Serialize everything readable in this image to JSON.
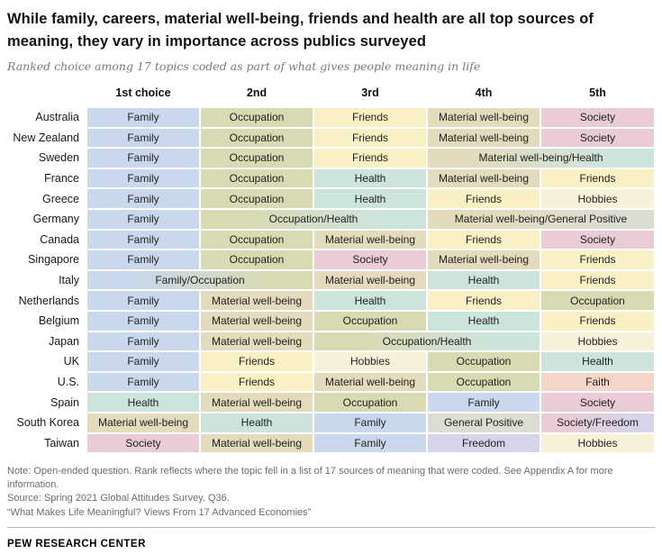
{
  "header": {
    "title": "While family, careers, material well-being, friends and health are all top sources of meaning, they vary in importance across publics surveyed",
    "subtitle": "Ranked choice among 17 topics coded as part of what gives people meaning in life"
  },
  "chart_data": {
    "type": "table",
    "title": "While family, careers, material well-being, friends and health are all top sources of meaning, they vary in importance across publics surveyed",
    "subtitle": "Ranked choice among 17 topics coded as part of what gives people meaning in life",
    "columns": [
      "1st choice",
      "2nd",
      "3rd",
      "4th",
      "5th"
    ],
    "rows": [
      {
        "country": "Australia",
        "cells": [
          {
            "label": "Family",
            "span": 1
          },
          {
            "label": "Occupation",
            "span": 1
          },
          {
            "label": "Friends",
            "span": 1
          },
          {
            "label": "Material well-being",
            "span": 1
          },
          {
            "label": "Society",
            "span": 1
          }
        ]
      },
      {
        "country": "New Zealand",
        "cells": [
          {
            "label": "Family",
            "span": 1
          },
          {
            "label": "Occupation",
            "span": 1
          },
          {
            "label": "Friends",
            "span": 1
          },
          {
            "label": "Material well-being",
            "span": 1
          },
          {
            "label": "Society",
            "span": 1
          }
        ]
      },
      {
        "country": "Sweden",
        "cells": [
          {
            "label": "Family",
            "span": 1
          },
          {
            "label": "Occupation",
            "span": 1
          },
          {
            "label": "Friends",
            "span": 1
          },
          {
            "label": "Material well-being/Health",
            "span": 2
          }
        ]
      },
      {
        "country": "France",
        "cells": [
          {
            "label": "Family",
            "span": 1
          },
          {
            "label": "Occupation",
            "span": 1
          },
          {
            "label": "Health",
            "span": 1
          },
          {
            "label": "Material well-being",
            "span": 1
          },
          {
            "label": "Friends",
            "span": 1
          }
        ]
      },
      {
        "country": "Greece",
        "cells": [
          {
            "label": "Family",
            "span": 1
          },
          {
            "label": "Occupation",
            "span": 1
          },
          {
            "label": "Health",
            "span": 1
          },
          {
            "label": "Friends",
            "span": 1
          },
          {
            "label": "Hobbies",
            "span": 1
          }
        ]
      },
      {
        "country": "Germany",
        "cells": [
          {
            "label": "Family",
            "span": 1
          },
          {
            "label": "Occupation/Health",
            "span": 2
          },
          {
            "label": "Material well-being/General Positive",
            "span": 2
          }
        ]
      },
      {
        "country": "Canada",
        "cells": [
          {
            "label": "Family",
            "span": 1
          },
          {
            "label": "Occupation",
            "span": 1
          },
          {
            "label": "Material well-being",
            "span": 1
          },
          {
            "label": "Friends",
            "span": 1
          },
          {
            "label": "Society",
            "span": 1
          }
        ]
      },
      {
        "country": "Singapore",
        "cells": [
          {
            "label": "Family",
            "span": 1
          },
          {
            "label": "Occupation",
            "span": 1
          },
          {
            "label": "Society",
            "span": 1
          },
          {
            "label": "Material well-being",
            "span": 1
          },
          {
            "label": "Friends",
            "span": 1
          }
        ]
      },
      {
        "country": "Italy",
        "cells": [
          {
            "label": "Family/Occupation",
            "span": 2
          },
          {
            "label": "Material well-being",
            "span": 1
          },
          {
            "label": "Health",
            "span": 1
          },
          {
            "label": "Friends",
            "span": 1
          }
        ]
      },
      {
        "country": "Netherlands",
        "cells": [
          {
            "label": "Family",
            "span": 1
          },
          {
            "label": "Material well-being",
            "span": 1
          },
          {
            "label": "Health",
            "span": 1
          },
          {
            "label": "Friends",
            "span": 1
          },
          {
            "label": "Occupation",
            "span": 1
          }
        ]
      },
      {
        "country": "Belgium",
        "cells": [
          {
            "label": "Family",
            "span": 1
          },
          {
            "label": "Material well-being",
            "span": 1
          },
          {
            "label": "Occupation",
            "span": 1
          },
          {
            "label": "Health",
            "span": 1
          },
          {
            "label": "Friends",
            "span": 1
          }
        ]
      },
      {
        "country": "Japan",
        "cells": [
          {
            "label": "Family",
            "span": 1
          },
          {
            "label": "Material well-being",
            "span": 1
          },
          {
            "label": "Occupation/Health",
            "span": 2
          },
          {
            "label": "Hobbies",
            "span": 1
          }
        ]
      },
      {
        "country": "UK",
        "cells": [
          {
            "label": "Family",
            "span": 1
          },
          {
            "label": "Friends",
            "span": 1
          },
          {
            "label": "Hobbies",
            "span": 1
          },
          {
            "label": "Occupation",
            "span": 1
          },
          {
            "label": "Health",
            "span": 1
          }
        ]
      },
      {
        "country": "U.S.",
        "cells": [
          {
            "label": "Family",
            "span": 1
          },
          {
            "label": "Friends",
            "span": 1
          },
          {
            "label": "Material well-being",
            "span": 1
          },
          {
            "label": "Occupation",
            "span": 1
          },
          {
            "label": "Faith",
            "span": 1
          }
        ]
      },
      {
        "country": "Spain",
        "cells": [
          {
            "label": "Health",
            "span": 1
          },
          {
            "label": "Material well-being",
            "span": 1
          },
          {
            "label": "Occupation",
            "span": 1
          },
          {
            "label": "Family",
            "span": 1
          },
          {
            "label": "Society",
            "span": 1
          }
        ]
      },
      {
        "country": "South Korea",
        "cells": [
          {
            "label": "Material well-being",
            "span": 1
          },
          {
            "label": "Health",
            "span": 1
          },
          {
            "label": "Family",
            "span": 1
          },
          {
            "label": "General Positive",
            "span": 1
          },
          {
            "label": "Society/Freedom",
            "span": 1
          }
        ]
      },
      {
        "country": "Taiwan",
        "cells": [
          {
            "label": "Society",
            "span": 1
          },
          {
            "label": "Material well-being",
            "span": 1
          },
          {
            "label": "Family",
            "span": 1
          },
          {
            "label": "Freedom",
            "span": 1
          },
          {
            "label": "Hobbies",
            "span": 1
          }
        ]
      }
    ],
    "color_legend": {
      "Family": "#c9d8ec",
      "Occupation": "#d8dab2",
      "Friends": "#f9f1c4",
      "Material well-being": "#e4dbbc",
      "Society": "#eaccd6",
      "Health": "#cde4dd",
      "Hobbies": "#f7f1da",
      "Faith": "#f3d5c9",
      "Freedom": "#d7d4ea",
      "General Positive": "#dddcd0"
    }
  },
  "notes": {
    "note": "Note: Open-ended question. Rank reflects where the topic fell in a list of 17 sources of meaning that were coded. See Appendix A for more information.",
    "source": "Source: Spring 2021 Global Attitudes Survey. Q36.",
    "report": "“What Makes Life Meaningful? Views From 17 Advanced Economies”"
  },
  "footer": {
    "brand": "PEW RESEARCH CENTER"
  }
}
